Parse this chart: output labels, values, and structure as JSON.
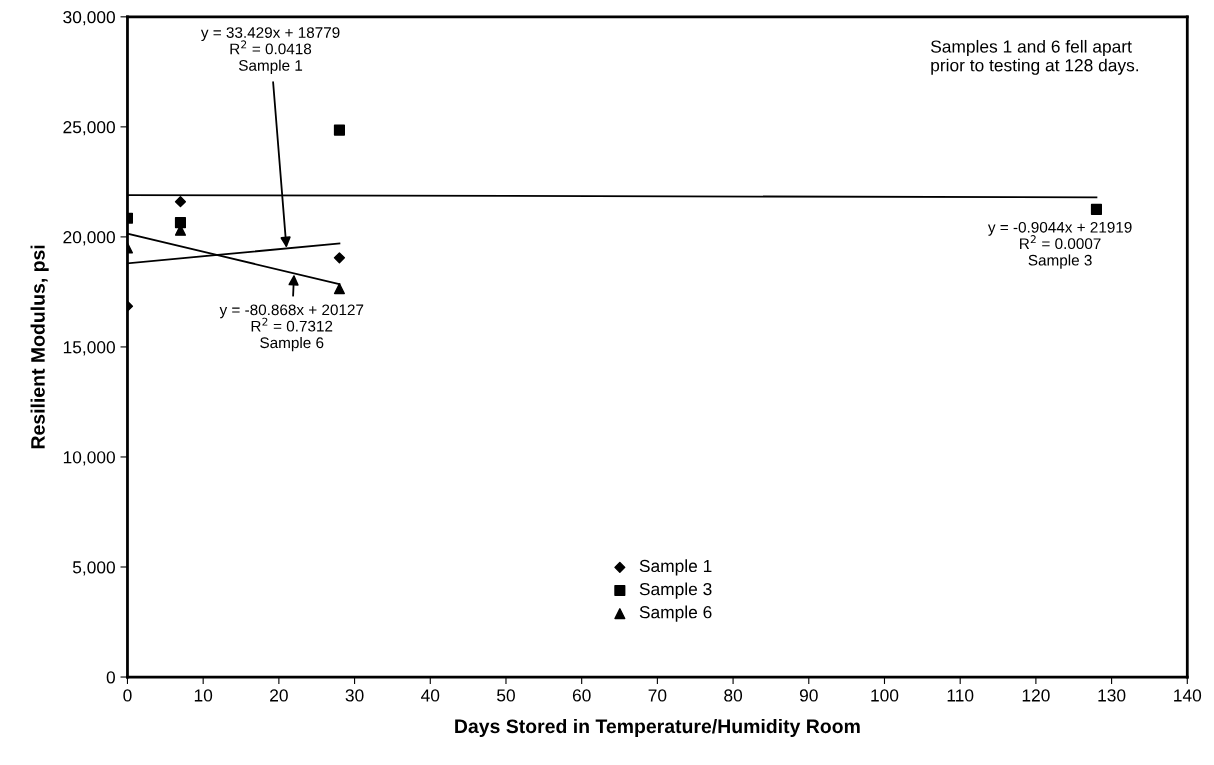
{
  "chart_data": {
    "type": "scatter",
    "xlabel": "Days Stored in Temperature/Humidity Room",
    "ylabel": "Resilient Modulus, psi",
    "series": [
      {
        "name": "Sample 1",
        "marker": "diamond",
        "color": "#000000",
        "x": [
          0,
          7,
          28
        ],
        "values": [
          16850,
          21600,
          19050
        ]
      },
      {
        "name": "Sample 3",
        "marker": "square",
        "color": "#000000",
        "x": [
          0,
          7,
          28,
          128
        ],
        "values": [
          20850,
          20650,
          24850,
          21250
        ]
      },
      {
        "name": "Sample 6",
        "marker": "triangle",
        "color": "#000000",
        "x": [
          0,
          7,
          28
        ],
        "values": [
          19500,
          20300,
          17650
        ]
      },
      {
        "type": "line",
        "color": "#000000",
        "x": [
          0,
          28
        ],
        "values": [
          18800,
          19700
        ]
      },
      {
        "type": "line",
        "color": "#000000",
        "x": [
          0,
          128
        ],
        "values": [
          21900,
          21800
        ]
      },
      {
        "type": "line",
        "color": "#000000",
        "x": [
          0,
          28
        ],
        "values": [
          20150,
          17850
        ]
      }
    ],
    "annotations": [
      {
        "text": "y = 33.429x + 18779\nR$^{2}$ = 0.0418\nSample 1",
        "x": 21,
        "y": 19500
      },
      {
        "text": "y = -0.9044x + 21919\nR$^{2}$ = 0.0007\nSample 3"
      },
      {
        "text": "y = -80.868x + 20127\nR$^{2}$ = 0.7312\nSample 6",
        "x": 22,
        "y": 18300
      },
      {
        "text": "Samples 1 and 6 fell apart\nprior to testing at 128 days."
      }
    ],
    "xlim": [
      0,
      140
    ],
    "xticks": [
      0,
      10,
      20,
      30,
      40,
      50,
      60,
      70,
      80,
      90,
      100,
      110,
      120,
      130,
      140
    ],
    "ylim": [
      0,
      30000
    ],
    "yticks": [
      {
        "value": 0,
        "label": "0"
      },
      {
        "value": 5000,
        "label": "5,000"
      },
      {
        "value": 10000,
        "label": "10,000"
      },
      {
        "value": 15000,
        "label": "15,000"
      },
      {
        "value": 20000,
        "label": "20,000"
      },
      {
        "value": 25000,
        "label": "25,000"
      },
      {
        "value": 30000,
        "label": "30,000"
      }
    ],
    "legend": "bottom",
    "grid": false
  }
}
